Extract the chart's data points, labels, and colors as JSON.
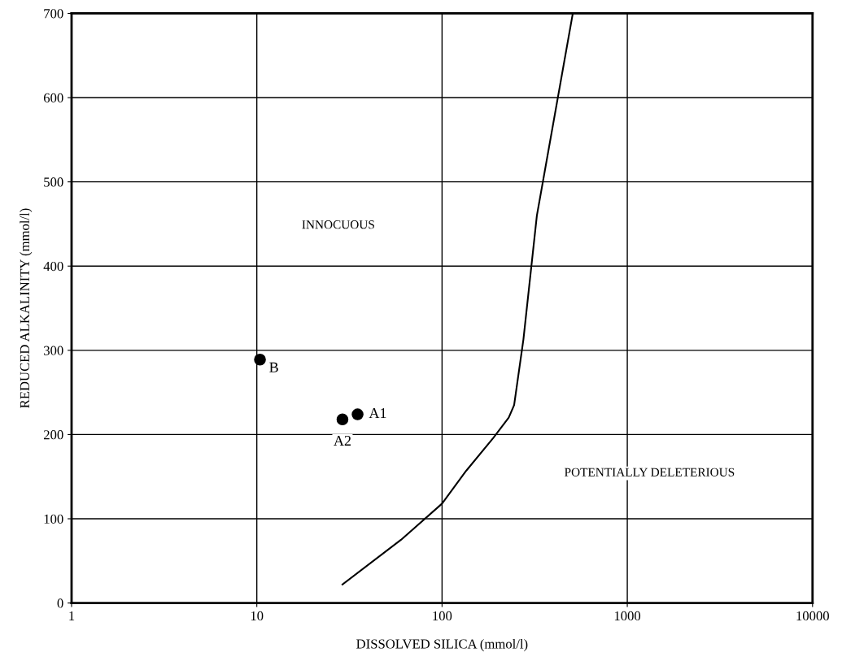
{
  "chart_data": {
    "type": "scatter",
    "xlabel": "DISSOLVED SILICA (mmol/l)",
    "ylabel": "REDUCED ALKALINITY (mmol/l)",
    "log": "x",
    "grid": true,
    "marker": "circle",
    "xlim": [
      1,
      10000
    ],
    "xticks": [
      1,
      10,
      100,
      1000,
      10000
    ],
    "ylim": [
      0,
      700
    ],
    "yticks": [
      0,
      100,
      200,
      300,
      400,
      500,
      600,
      700
    ],
    "series": [
      {
        "type": "line",
        "color": "#000000",
        "marker": "none",
        "x": [
          29,
          60,
          100,
          135,
          189,
          229,
          245,
          275,
          325,
          508
        ],
        "values": [
          22,
          75,
          118,
          157,
          196,
          220,
          235,
          313,
          460,
          700
        ]
      },
      {
        "color": "#000000",
        "x": [
          10.4,
          35,
          29
        ],
        "values": [
          289,
          224,
          218
        ]
      }
    ],
    "annotations": [
      {
        "text": "B",
        "x": 10.4,
        "y": 289
      },
      {
        "text": "A1",
        "x": 35,
        "y": 224
      },
      {
        "text": "A2",
        "x": 29,
        "y": 218
      },
      "INNOCUOUS",
      "POTENTIALLY DELETERIOUS"
    ]
  }
}
